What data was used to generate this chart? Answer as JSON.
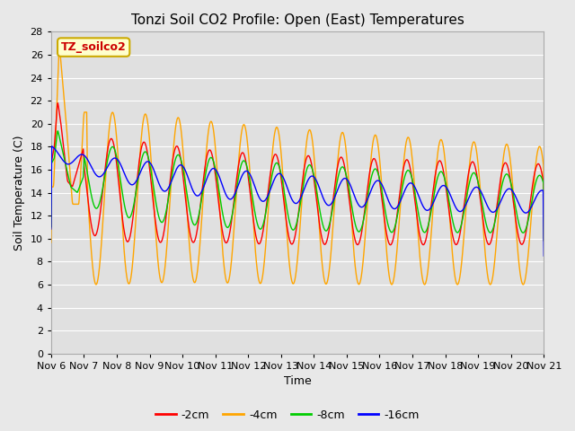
{
  "title": "Tonzi Soil CO2 Profile: Open (East) Temperatures",
  "ylabel": "Soil Temperature (C)",
  "xlabel": "Time",
  "legend_title": "TZ_soilco2",
  "ylim": [
    0,
    28
  ],
  "yticks": [
    0,
    2,
    4,
    6,
    8,
    10,
    12,
    14,
    16,
    18,
    20,
    22,
    24,
    26,
    28
  ],
  "xtick_labels": [
    "Nov 6",
    "Nov 7",
    "Nov 8",
    "Nov 9",
    "Nov 10",
    "Nov 11",
    "Nov 12",
    "Nov 13",
    "Nov 14",
    "Nov 15",
    "Nov 16",
    "Nov 17",
    "Nov 18",
    "Nov 19",
    "Nov 20",
    "Nov 21"
  ],
  "series_colors": [
    "#ff0000",
    "#ffa500",
    "#00cc00",
    "#0000ff"
  ],
  "series_labels": [
    "-2cm",
    "-4cm",
    "-8cm",
    "-16cm"
  ],
  "background_color": "#e8e8e8",
  "plot_bg_color": "#e0e0e0",
  "legend_bg": "#ffffcc",
  "legend_edge": "#ccaa00",
  "title_fontsize": 11,
  "axis_fontsize": 9,
  "tick_fontsize": 8,
  "legend_fontsize": 9,
  "n_days": 15,
  "samples_per_day": 96
}
